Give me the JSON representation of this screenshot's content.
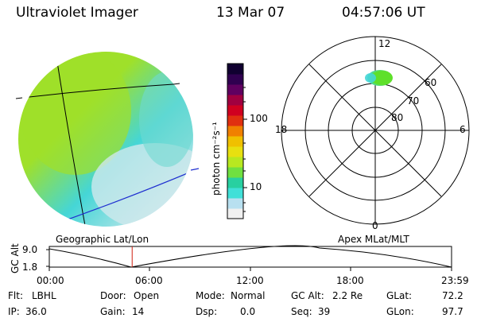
{
  "header": {
    "instrument": "Ultraviolet Imager",
    "date": "13 Mar 07",
    "time": "04:57:06 UT"
  },
  "colorbar": {
    "label": "photon cm⁻²s⁻¹",
    "ticks": [
      "100",
      "10"
    ],
    "colors": [
      "#f0f0f0",
      "#b8e0f0",
      "#40e0d8",
      "#28d0a0",
      "#70e040",
      "#b8e820",
      "#e8e010",
      "#f0c000",
      "#f08000",
      "#e03010",
      "#d00020",
      "#a00040",
      "#600060",
      "#300050",
      "#100030"
    ]
  },
  "left_panel": {
    "caption": "Geographic Lat/Lon",
    "disk_colors": {
      "bright": "#9fe02a",
      "mid": "#6fd8a8",
      "dim": "#45d6d6",
      "faint": "#cfe8ec"
    },
    "grid_color": "#000000",
    "terminator_color": "#1f2fd0"
  },
  "right_panel": {
    "caption": "Apex MLat/MLT",
    "mlt_labels": {
      "top": "12",
      "left": "18",
      "right": "6",
      "bottom": "0"
    },
    "lat_labels": [
      "60",
      "70",
      "80"
    ],
    "blob_colors": {
      "core": "#5ee02a",
      "edge": "#45d6d6"
    }
  },
  "timeline": {
    "ylabel": "GC Alt",
    "y_ticks": [
      "9.0",
      "1.8"
    ],
    "x_ticks": [
      "00:00",
      "06:00",
      "12:00",
      "18:00",
      "23:59"
    ],
    "marker_color": "#d02010",
    "current_fraction": 0.206
  },
  "status": {
    "flt_label": "Flt:",
    "flt_value": "LBHL",
    "ip_label": "IP:",
    "ip_value": "36.0",
    "door_label": "Door:",
    "door_value": "Open",
    "gain_label": "Gain:",
    "gain_value": "14",
    "mode_label": "Mode:",
    "mode_value": "Normal",
    "dsp_label": "Dsp:",
    "dsp_value": "0.0",
    "gcalt_label": "GC Alt:",
    "gcalt_value": "2.2 Re",
    "seq_label": "Seq:",
    "seq_value": "39",
    "glat_label": "GLat:",
    "glat_value": "72.2",
    "glon_label": "GLon:",
    "glon_value": "97.7"
  }
}
